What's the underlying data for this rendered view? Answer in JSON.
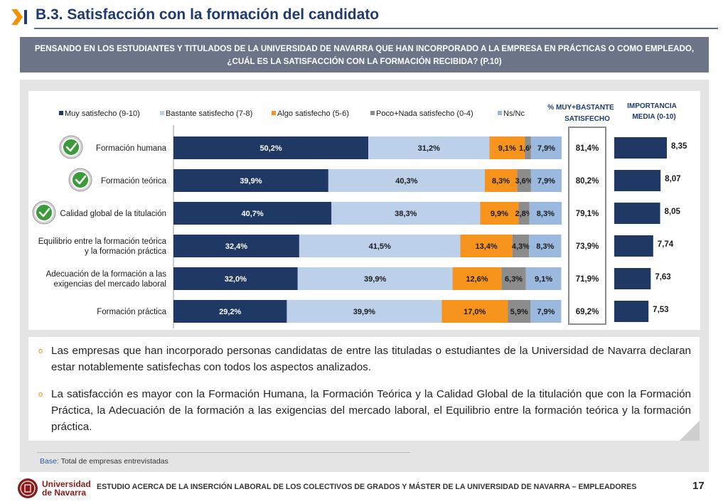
{
  "header": {
    "title": "B.3. Satisfacción con la formación del candidato"
  },
  "question": {
    "line1": "PENSANDO EN LOS ESTUDIANTES Y TITULADOS DE LA UNIVERSIDAD DE NAVARRA QUE HAN INCORPORADO A LA EMPRESA EN PRÁCTICAS O COMO EMPLEADO,",
    "line2": "¿CUÁL ES LA SATISFACCIÓN CON LA FORMACIÓN RECIBIDA? (P.10)"
  },
  "chart_data": {
    "type": "bar",
    "orientation": "horizontal",
    "stacked": true,
    "legend_position": "top",
    "categories": [
      "Formación humana",
      "Formación teórica",
      "Calidad global de la titulación",
      "Equilibrio entre la formación teórica y la formación práctica",
      "Adecuación de la formación a las exigencias del mercado laboral",
      "Formación práctica"
    ],
    "category_lines": [
      [
        "Formación humana"
      ],
      [
        "Formación teórica"
      ],
      [
        "Calidad global de la titulación"
      ],
      [
        "Equilibrio entre la formación teórica",
        "y la formación práctica"
      ],
      [
        "Adecuación de la formación a las",
        "exigencias del mercado laboral"
      ],
      [
        "Formación práctica"
      ]
    ],
    "checkmarks": [
      true,
      true,
      true,
      false,
      false,
      false
    ],
    "series": [
      {
        "name": "Muy satisfecho (9-10)",
        "color": "#1f3864",
        "label_color": "#ffffff",
        "values": [
          50.2,
          39.9,
          40.7,
          32.4,
          32.0,
          29.2
        ],
        "labels": [
          "50,2%",
          "39,9%",
          "40,7%",
          "32,4%",
          "32,0%",
          "29,2%"
        ]
      },
      {
        "name": "Bastante satisfecho (7-8)",
        "color": "#bcd0ea",
        "label_color": "#1a1a1a",
        "values": [
          31.2,
          40.3,
          38.3,
          41.5,
          39.9,
          39.9
        ],
        "labels": [
          "31,2%",
          "40,3%",
          "38,3%",
          "41,5%",
          "39,9%",
          "39,9%"
        ]
      },
      {
        "name": "Algo satisfecho (5-6)",
        "color": "#f7941d",
        "label_color": "#1a1a1a",
        "values": [
          9.1,
          8.3,
          9.9,
          13.4,
          12.6,
          17.0
        ],
        "labels": [
          "9,1%",
          "8,3%",
          "9,9%",
          "13,4%",
          "12,6%",
          "17,0%"
        ]
      },
      {
        "name": "Poco+Nada satisfecho (0-4)",
        "color": "#8c8c8c",
        "label_color": "#1a1a1a",
        "values": [
          1.6,
          3.6,
          2.8,
          4.3,
          6.3,
          5.9
        ],
        "labels": [
          "1,6%",
          "3,6%",
          "2,8%",
          "4,3%",
          "6,3%",
          "5,9%"
        ]
      },
      {
        "name": "Ns/Nc",
        "color": "#9bb8de",
        "label_color": "#1a1a1a",
        "values": [
          7.9,
          7.9,
          8.3,
          8.3,
          9.1,
          7.9
        ],
        "labels": [
          "7,9%",
          "7,9%",
          "8,3%",
          "8,3%",
          "9,1%",
          "7,9%"
        ]
      }
    ],
    "xlim": [
      0,
      100
    ],
    "top2box": {
      "header_lines": [
        "% MUY+BASTANTE",
        "SATISFECHO"
      ],
      "labels": [
        "81,4%",
        "80,2%",
        "79,1%",
        "73,9%",
        "71,9%",
        "69,2%"
      ]
    },
    "importance": {
      "header_lines": [
        "IMPORTANCIA",
        "MEDIA (0-10)"
      ],
      "values": [
        8.35,
        8.07,
        8.05,
        7.74,
        7.63,
        7.53
      ],
      "labels": [
        "8,35",
        "8,07",
        "8,05",
        "7,74",
        "7,63",
        "7,53"
      ],
      "color": "#1f3864"
    }
  },
  "bullets": [
    "Las empresas que han incorporado personas candidatas de entre las tituladas o estudiantes de la Universidad de Navarra declaran estar notablemente satisfechas con todos los aspectos analizados.",
    "La satisfacción es mayor con la Formación Humana, la Formación Teórica y la Calidad Global de la titulación que con la Formación Práctica, la Adecuación de la formación a las exigencias del mercado laboral, el Equilibrio entre la formación teórica y la formación práctica."
  ],
  "bullet_marker": "o",
  "base_note": {
    "label": "Base:",
    "text": " Total de empresas entrevistadas"
  },
  "footer": {
    "logo_line1": "Universidad",
    "logo_line2": "de Navarra",
    "text": "ESTUDIO ACERCA DE LA INSERCIÓN LABORAL DE LOS COLECTIVOS DE GRADOS Y MÁSTER DE LA UNIVERSIDAD DE NAVARRA – EMPLEADORES",
    "page": "17"
  }
}
